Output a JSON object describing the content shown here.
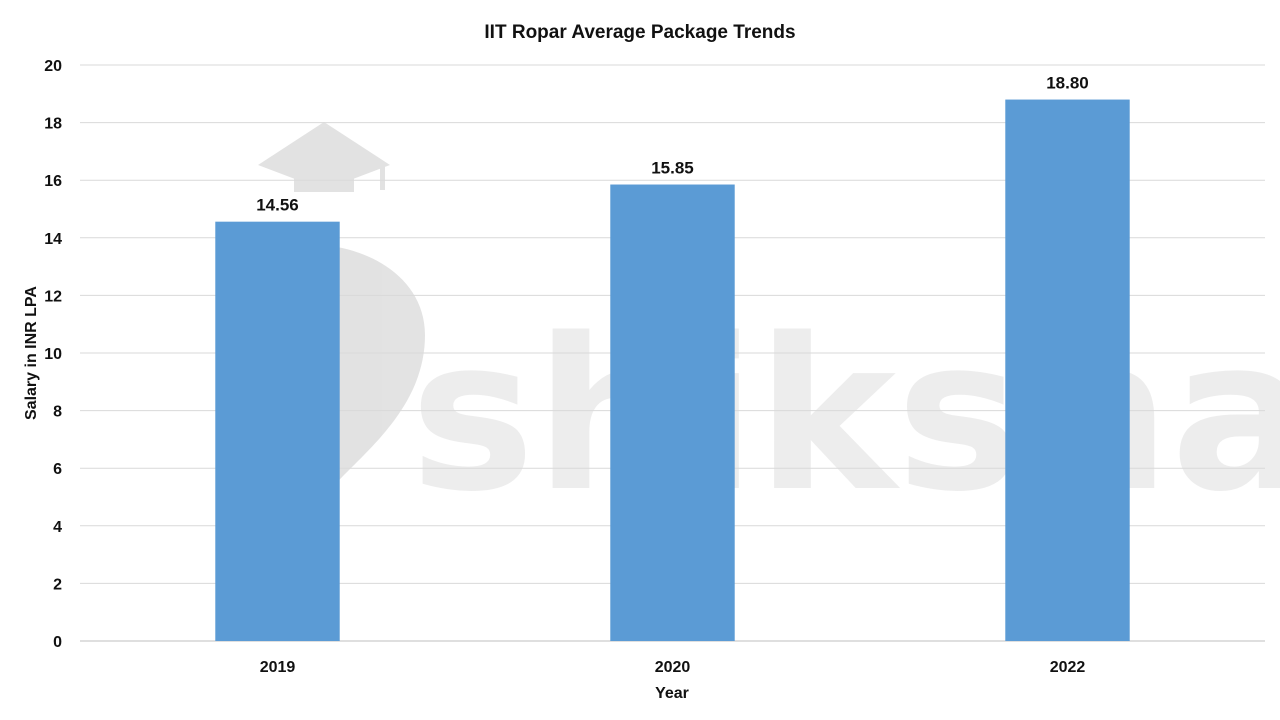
{
  "watermark": {
    "text": "shiksha",
    "icon": "graduation-cap-logo-icon"
  },
  "chart_data": {
    "type": "bar",
    "title": "IIT Ropar Average Package Trends",
    "xlabel": "Year",
    "ylabel": "Salary in INR LPA",
    "categories": [
      "2019",
      "2020",
      "2022"
    ],
    "values": [
      14.56,
      15.85,
      18.8
    ],
    "data_labels": [
      "14.56",
      "15.85",
      "18.80"
    ],
    "ylim": [
      0,
      20
    ],
    "yticks": [
      "0",
      "2",
      "4",
      "6",
      "8",
      "10",
      "12",
      "14",
      "16",
      "18",
      "20"
    ],
    "grid": true,
    "legend": "none",
    "bar_color": "#5b9bd5",
    "grid_color": "#d9d9d9"
  }
}
